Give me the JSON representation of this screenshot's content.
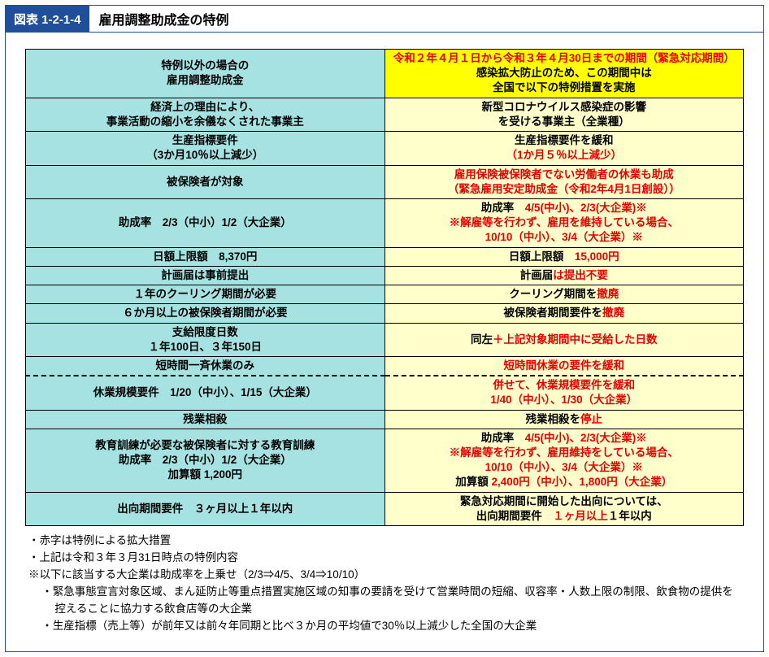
{
  "figure": {
    "tag": "図表 1-2-1-4",
    "title": "雇用調整助成金の特例"
  },
  "table": {
    "left_header": "特例以外の場合の\n雇用調整助成金",
    "right_header": {
      "line1": "令和２年４月１日から令和３年４月30日までの期間（緊急対応期間）",
      "line2": "感染拡大防止のため、この期間中は",
      "line3": "全国で以下の特例措置を実施"
    },
    "rows": [
      {
        "left": "経済上の理由により、\n事業活動の縮小を余儀なくされた事業主",
        "right": [
          {
            "text": "新型コロナウイルス感染症の影響",
            "cls": "black"
          },
          {
            "text": "を受ける事業主（全業種）",
            "cls": "black"
          }
        ]
      },
      {
        "left": "生産指標要件\n（3か月10％以上減少）",
        "right": [
          {
            "text": "生産指標要件を緩和",
            "cls": "black"
          },
          {
            "text": "（1か月５％以上減少）",
            "cls": "red"
          }
        ]
      },
      {
        "left": "被保険者が対象",
        "right": [
          {
            "text": "雇用保険被保険者でない労働者の休業も助成",
            "cls": "red"
          },
          {
            "text": "（緊急雇用安定助成金（令和2年4月1日創設））",
            "cls": "red"
          }
        ]
      },
      {
        "left": "助成率　2/3（中小）1/2（大企業）",
        "right": [
          {
            "html": "<span class=\"black\">助成率　</span><span class=\"red\">4/5(中小)、2/3(大企業)※</span>"
          },
          {
            "text": "※解雇等を行わず、雇用を維持している場合、",
            "cls": "red"
          },
          {
            "text": "10/10（中小）、3/4（大企業）※",
            "cls": "red"
          }
        ]
      },
      {
        "left": "日額上限額　8,370円",
        "right": [
          {
            "html": "<span class=\"black\">日額上限額　</span><span class=\"red\">15,000円</span>"
          }
        ]
      },
      {
        "left": "計画届は事前提出",
        "right": [
          {
            "html": "<span class=\"black\">計画届</span><span class=\"red\">は提出不要</span>"
          }
        ]
      },
      {
        "left": "１年のクーリング期間が必要",
        "right": [
          {
            "html": "<span class=\"black\">クーリング期間を</span><span class=\"red\">撤廃</span>"
          }
        ]
      },
      {
        "left": "６か月以上の被保険者期間が必要",
        "right": [
          {
            "html": "<span class=\"black\">被保険者期間要件を</span><span class=\"red\">撤廃</span>"
          }
        ]
      },
      {
        "left": "支給限度日数\n１年100日、３年150日",
        "right": [
          {
            "html": "<span class=\"black\">同左</span><span class=\"red\">＋上記対象期間中に受給した日数</span>"
          }
        ]
      },
      {
        "left": "短時間一斉休業のみ",
        "right": [
          {
            "text": "短時間休業の要件を緩和",
            "cls": "red"
          }
        ]
      },
      {
        "left": "休業規模要件　1/20（中小）、1/15（大企業）",
        "right": [
          {
            "text": "併せて、休業規模要件を緩和",
            "cls": "red"
          },
          {
            "text": "1/40（中小）、1/30（大企業）",
            "cls": "red"
          }
        ],
        "dashed": true
      },
      {
        "left": "残業相殺",
        "right": [
          {
            "html": "<span class=\"black\">残業相殺を</span><span class=\"red\">停止</span>"
          }
        ]
      },
      {
        "left": "教育訓練が必要な被保険者に対する教育訓練\n助成率　2/3（中小）1/2（大企業）\n加算額 1,200円",
        "right": [
          {
            "html": "<span class=\"black\">助成率　</span><span class=\"red\">4/5(中小)、2/3(大企業)※</span>"
          },
          {
            "text": "※解雇等を行わず、雇用維持をしている場合、",
            "cls": "red"
          },
          {
            "text": "10/10（中小）、3/4（大企業）※",
            "cls": "red"
          },
          {
            "html": "<span class=\"black\">加算額 </span><span class=\"red\">2,400円（中小）、1,800円（大企業）</span>"
          }
        ]
      },
      {
        "left": "出向期間要件　３ヶ月以上１年以内",
        "right": [
          {
            "text": "緊急対応期間に開始した出向については、",
            "cls": "black"
          },
          {
            "html": "<span class=\"black\">出向期間要件　</span><span class=\"red\">１ヶ月以上</span><span class=\"black\">１年以内</span>"
          }
        ]
      }
    ]
  },
  "notes": [
    "・赤字は特例による拡大措置",
    "・上記は令和３年３月31日時点の特例内容",
    "※以下に該当する大企業は助成率を上乗せ（2/3⇒4/5、3/4⇒10/10）",
    "・緊急事態宣言対象区域、まん延防止等重点措置実施区域の知事の要請を受けて営業時間の短縮、収容率・人数上限の制限、飲食物の提供を控えることに協力する飲食店等の大企業",
    "・生産指標（売上等）が前年又は前々年同期と比べ３か月の平均値で30％以上減少した全国の大企業"
  ]
}
